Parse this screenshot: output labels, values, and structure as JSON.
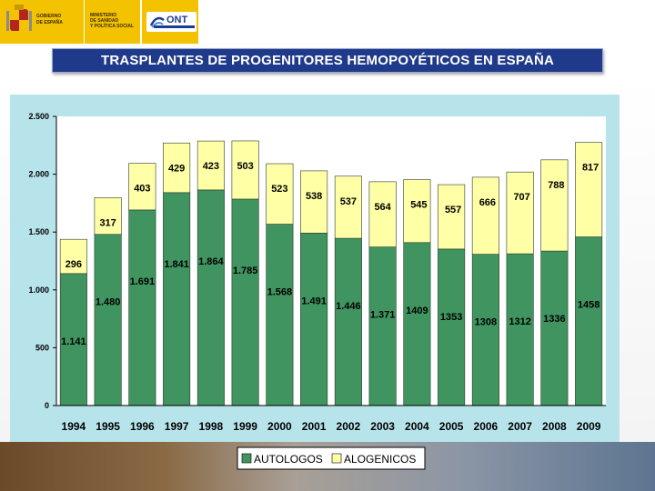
{
  "header": {
    "gov_logo": {
      "icon": "coat-of-arms-icon",
      "line1": "GOBIERNO",
      "line2": "DE ESPAÑA"
    },
    "ministry_logo": {
      "line1": "MINISTERIO",
      "line2": "DE SANIDAD",
      "line3": "Y POLÍTICA SOCIAL"
    },
    "ont_logo": {
      "text": "ONT",
      "icon": "ont-swirl-icon"
    },
    "brand_color": "#f3c200"
  },
  "title": "TRASPLANTES DE PROGENITORES HEMOPOYÉTICOS EN ESPAÑA",
  "colors": {
    "title_bg": "#1f3a8a",
    "plot_frame": "#b7e4ea",
    "autologos": "#3f9460",
    "alogenicos": "#ffffa6"
  },
  "chart_data": {
    "type": "bar",
    "stacked": true,
    "categories": [
      "1994",
      "1995",
      "1996",
      "1997",
      "1998",
      "1999",
      "2000",
      "2001",
      "2002",
      "2003",
      "2004",
      "2005",
      "2006",
      "2007",
      "2008",
      "2009"
    ],
    "series": [
      {
        "name": "AUTOLOGOS",
        "values": [
          1141,
          1480,
          1691,
          1841,
          1864,
          1785,
          1568,
          1491,
          1446,
          1371,
          1409,
          1353,
          1308,
          1312,
          1336,
          1458
        ],
        "labels": [
          "1.141",
          "1.480",
          "1.691",
          "1.841",
          "1.864",
          "1.785",
          "1.568",
          "1.491",
          "1.446",
          "1.371",
          "1409",
          "1353",
          "1308",
          "1312",
          "1336",
          "1458"
        ]
      },
      {
        "name": "ALOGENICOS",
        "values": [
          296,
          317,
          403,
          429,
          423,
          503,
          523,
          538,
          537,
          564,
          545,
          557,
          666,
          707,
          788,
          817
        ],
        "labels": [
          "296",
          "317",
          "403",
          "429",
          "423",
          "503",
          "523",
          "538",
          "537",
          "564",
          "545",
          "557",
          "666",
          "707",
          "788",
          "817"
        ]
      }
    ],
    "ylim": [
      0,
      2500
    ],
    "yticks": [
      0,
      500,
      1000,
      1500,
      2000,
      2500
    ],
    "ytick_labels": [
      "0",
      "500",
      "1.000",
      "1.500",
      "2.000",
      "2.500"
    ],
    "grid": false,
    "legend_position": "bottom",
    "title": "",
    "xlabel": "",
    "ylabel": ""
  }
}
